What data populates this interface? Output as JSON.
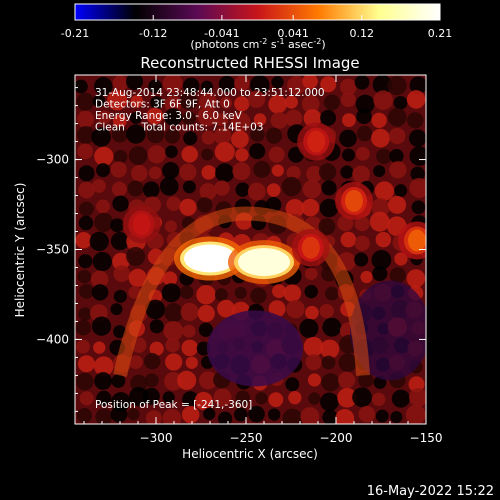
{
  "chart_data": {
    "type": "heatmap",
    "title": "Reconstructed RHESSI Image",
    "colorbar": {
      "ticks": [
        "-0.21",
        "-0.12",
        "-0.041",
        "0.041",
        "0.12",
        "0.21"
      ],
      "tick_values": [
        -0.21,
        -0.12,
        -0.041,
        0.041,
        0.12,
        0.21
      ],
      "range": [
        -0.21,
        0.21
      ],
      "label": "(photons cm",
      "label_exp1": "-2",
      "label_mid": " s",
      "label_exp2": "-1",
      "label_mid2": " asec",
      "label_exp3": "-2",
      "label_end": ")",
      "colormap": [
        "#0000ff",
        "#000000",
        "#5a0a55",
        "#c8141a",
        "#ff7a00",
        "#ffff90",
        "#ffffff"
      ]
    },
    "xlabel": "Heliocentric X (arcsec)",
    "ylabel": "Heliocentric Y (arcsec)",
    "xlim": [
      -345,
      -150
    ],
    "ylim": [
      -447,
      -253
    ],
    "xticks": [
      -300,
      -250,
      -200,
      -150
    ],
    "yticks": [
      -300,
      -350,
      -400
    ],
    "annotations": [
      "31-Aug-2014 23:48:44.000 to 23:51:12.000",
      "Detectors: 3F 6F 9F, Att 0",
      "Energy Range: 3.0 - 6.0 keV",
      "Clean     Total counts: 7.14E+03"
    ],
    "peak_label": "Position of Peak = [-241,-360]",
    "peak": [
      -241,
      -360
    ],
    "sources": [
      {
        "x": -270,
        "y": -355,
        "value": 0.21
      },
      {
        "x": -240,
        "y": -357,
        "value": 0.2
      },
      {
        "x": -155,
        "y": -345,
        "value": 0.11
      },
      {
        "x": -190,
        "y": -323,
        "value": 0.1
      },
      {
        "x": -214,
        "y": -349,
        "value": 0.09
      },
      {
        "x": -308,
        "y": -336,
        "value": 0.07
      },
      {
        "x": -211,
        "y": -290,
        "value": 0.08
      }
    ],
    "grid": false
  },
  "footer": {
    "timestamp": "16-May-2022 15:22"
  }
}
